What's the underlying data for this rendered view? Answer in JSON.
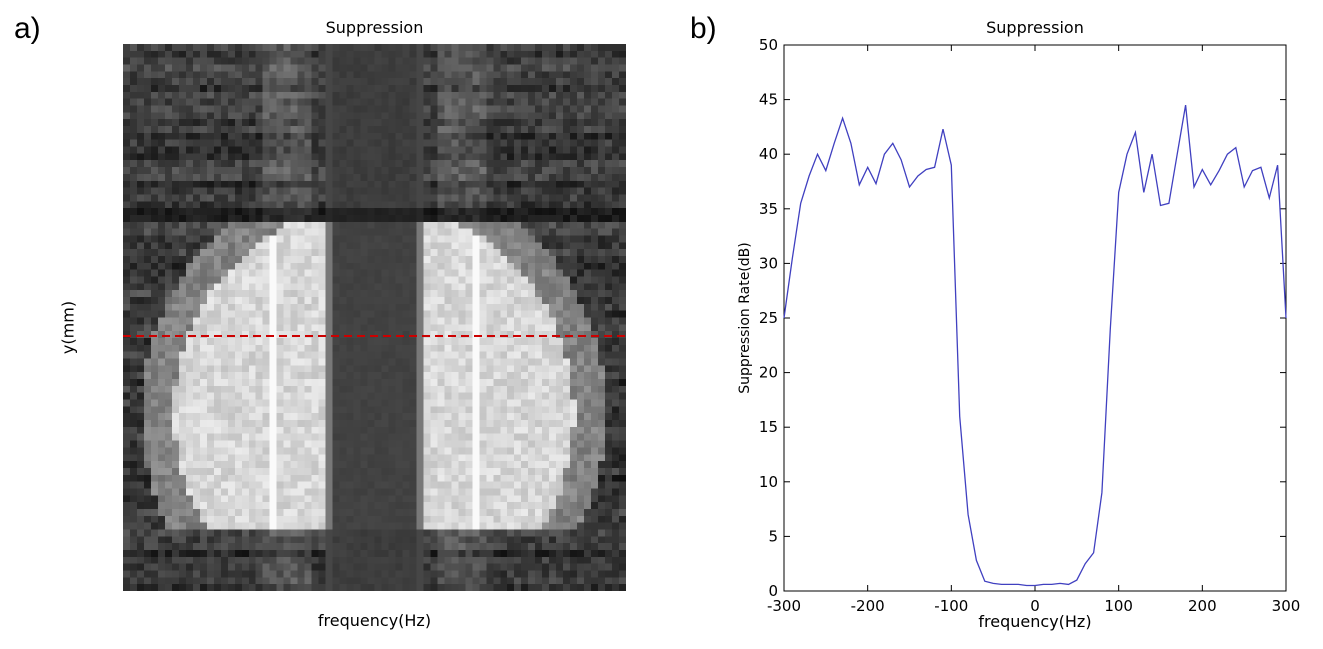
{
  "panel_a": {
    "label": "a)",
    "title": "Suppression",
    "xlabel": "frequency(Hz)",
    "ylabel": "y(mm)"
  },
  "panel_b": {
    "label": "b)",
    "title": "Suppression",
    "xlabel": "frequency(Hz)",
    "ylabel": "Suppression Rate(dB)"
  },
  "colors": {
    "line": "#4040c0",
    "dashed_line": "#cc0000"
  },
  "chart_data": [
    {
      "type": "heatmap",
      "title": "Suppression",
      "xlabel": "frequency(Hz)",
      "ylabel": "y(mm)",
      "colormap": "gray",
      "annotations": [
        "red dashed horizontal line marking the profile row plotted in panel b"
      ]
    },
    {
      "type": "line",
      "title": "Suppression",
      "xlabel": "frequency(Hz)",
      "ylabel": "Suppression Rate(dB)",
      "xlim": [
        -300,
        300
      ],
      "ylim": [
        0,
        50
      ],
      "xticks": [
        -300,
        -200,
        -100,
        0,
        100,
        200,
        300
      ],
      "yticks": [
        0,
        5,
        10,
        15,
        20,
        25,
        30,
        35,
        40,
        45,
        50
      ],
      "series": [
        {
          "name": "suppression",
          "x": [
            -300,
            -290,
            -280,
            -270,
            -260,
            -250,
            -240,
            -230,
            -220,
            -210,
            -200,
            -190,
            -180,
            -170,
            -160,
            -150,
            -140,
            -130,
            -120,
            -110,
            -100,
            -90,
            -80,
            -70,
            -60,
            -50,
            -40,
            -30,
            -20,
            -10,
            0,
            10,
            20,
            30,
            40,
            50,
            60,
            70,
            80,
            90,
            100,
            110,
            120,
            130,
            140,
            150,
            160,
            170,
            180,
            190,
            200,
            210,
            220,
            230,
            240,
            250,
            260,
            270,
            280,
            290,
            300
          ],
          "values": [
            25,
            30.5,
            35.5,
            38,
            40,
            38.5,
            41,
            43.3,
            41,
            37.2,
            38.8,
            37.3,
            40,
            41,
            39.5,
            37,
            38,
            38.6,
            38.8,
            42.3,
            39,
            16,
            7,
            2.8,
            0.9,
            0.7,
            0.6,
            0.6,
            0.6,
            0.5,
            0.5,
            0.6,
            0.6,
            0.7,
            0.6,
            1,
            2.5,
            3.5,
            9,
            24,
            36.5,
            40,
            42,
            36.5,
            40,
            35.3,
            35.5,
            40,
            44.5,
            37,
            38.6,
            37.2,
            38.5,
            40,
            40.6,
            37,
            38.5,
            38.8,
            36,
            39,
            25
          ]
        }
      ]
    }
  ]
}
